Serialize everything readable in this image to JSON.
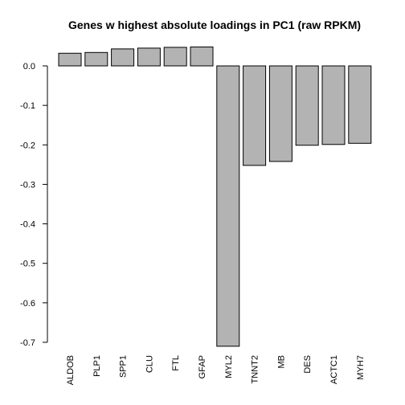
{
  "chart_data": {
    "type": "bar",
    "title": "Genes w highest absolute loadings in PC1 (raw RPKM)",
    "xlabel": "",
    "ylabel": "",
    "categories": [
      "ALDOB",
      "PLP1",
      "SPP1",
      "CLU",
      "FTL",
      "GFAP",
      "MYL2",
      "TNNT2",
      "MB",
      "DES",
      "ACTC1",
      "MYH7"
    ],
    "values": [
      0.032,
      0.034,
      0.043,
      0.045,
      0.047,
      0.048,
      -0.71,
      -0.252,
      -0.242,
      -0.201,
      -0.199,
      -0.196
    ],
    "ylim": [
      -0.7,
      0.0
    ],
    "yticks": [
      0.0,
      -0.1,
      -0.2,
      -0.3,
      -0.4,
      -0.5,
      -0.6,
      -0.7
    ],
    "ytick_labels": [
      "0.0",
      "-0.1",
      "-0.2",
      "-0.3",
      "-0.4",
      "-0.5",
      "-0.6",
      "-0.7"
    ],
    "bar_color": "#b3b3b3",
    "grid": false,
    "legend": "none"
  }
}
